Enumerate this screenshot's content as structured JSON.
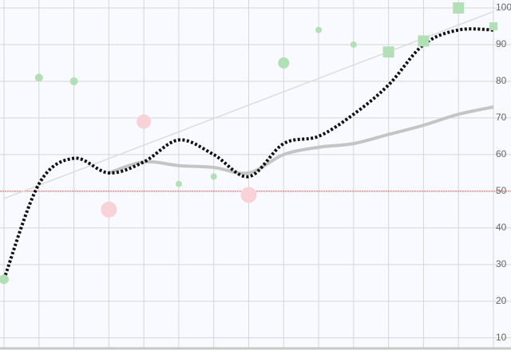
{
  "chart_data": {
    "type": "combo",
    "xlim": [
      0,
      14
    ],
    "ylim": [
      8,
      100
    ],
    "xticks": [
      0,
      1,
      2,
      3,
      4,
      5,
      6,
      7,
      8,
      9,
      10,
      11,
      12,
      13,
      14
    ],
    "yticks": [
      10,
      20,
      30,
      40,
      50,
      60,
      70,
      80,
      90,
      100
    ],
    "grid": true,
    "reference_line": {
      "value": 50,
      "color": "#e06666"
    },
    "series": [
      {
        "kind": "line",
        "x": [
          0,
          14
        ],
        "values": [
          48,
          99
        ],
        "color": "#dcdcdc",
        "width": 1.5
      },
      {
        "kind": "line",
        "smooth": true,
        "x": [
          3,
          4,
          5,
          6,
          7,
          8,
          9,
          10,
          11,
          12,
          13,
          14
        ],
        "values": [
          55,
          58,
          57,
          56.5,
          55,
          60,
          62,
          63,
          65.5,
          68,
          71,
          73
        ],
        "color": "#c4c4c4",
        "width": 4
      },
      {
        "kind": "line",
        "smooth": true,
        "dotted": true,
        "x": [
          0,
          1,
          2,
          3,
          4,
          5,
          6,
          7,
          8,
          9,
          10,
          11,
          12,
          13,
          14
        ],
        "values": [
          26,
          52,
          59,
          55,
          58,
          64,
          60,
          54,
          63,
          65,
          71,
          79,
          90,
          94,
          94
        ],
        "color": "#111111",
        "width": 4
      },
      {
        "kind": "scatter",
        "marker": "circle",
        "x": [
          0,
          1,
          2,
          5,
          6,
          8,
          9,
          10
        ],
        "values": [
          26,
          81,
          80,
          52,
          54,
          85,
          94,
          90
        ],
        "sizes": [
          6,
          5,
          5,
          4,
          4,
          7,
          4,
          4
        ],
        "color": "#b3dfb7"
      },
      {
        "kind": "scatter",
        "marker": "square",
        "x": [
          11,
          12,
          13,
          14
        ],
        "values": [
          88,
          91,
          100,
          95
        ],
        "sizes": [
          7,
          7,
          7,
          5
        ],
        "color": "#b3dfb7"
      },
      {
        "kind": "scatter",
        "marker": "circle",
        "x": [
          3,
          4,
          7
        ],
        "values": [
          45,
          69,
          49
        ],
        "sizes": [
          10,
          9,
          10
        ],
        "color": "#f8d2d6"
      }
    ]
  }
}
